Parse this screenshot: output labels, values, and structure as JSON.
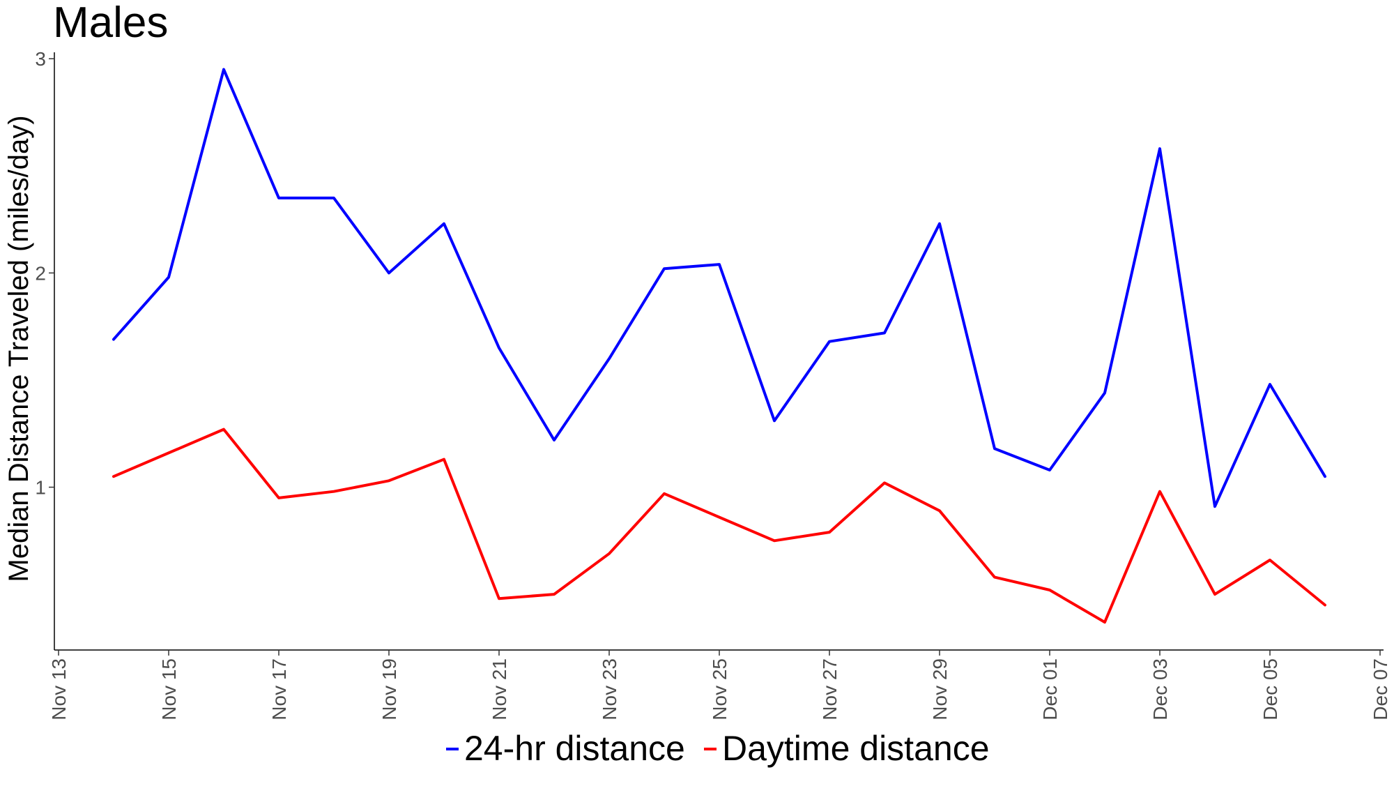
{
  "chart_data": {
    "type": "line",
    "title": "Males",
    "xlabel": "",
    "ylabel": "Median Distance Traveled (miles/day)",
    "x": [
      "Nov 14",
      "Nov 15",
      "Nov 16",
      "Nov 17",
      "Nov 18",
      "Nov 19",
      "Nov 20",
      "Nov 21",
      "Nov 22",
      "Nov 23",
      "Nov 24",
      "Nov 25",
      "Nov 26",
      "Nov 27",
      "Nov 28",
      "Nov 29",
      "Nov 30",
      "Dec 01",
      "Dec 02",
      "Dec 03",
      "Dec 04",
      "Dec 05",
      "Dec 06"
    ],
    "x_tick_labels": [
      "Nov 13",
      "Nov 15",
      "Nov 17",
      "Nov 19",
      "Nov 21",
      "Nov 23",
      "Nov 25",
      "Nov 27",
      "Nov 29",
      "Dec 01",
      "Dec 03",
      "Dec 05",
      "Dec 07"
    ],
    "y_ticks": [
      1,
      2,
      3
    ],
    "ylim": [
      0.24,
      3.03
    ],
    "grid": false,
    "legend_position": "bottom",
    "series": [
      {
        "name": "24-hr distance",
        "color": "#0000ff",
        "values": [
          1.69,
          1.98,
          2.95,
          2.35,
          2.35,
          2.0,
          2.23,
          1.65,
          1.22,
          1.6,
          2.02,
          2.04,
          1.31,
          1.68,
          1.72,
          2.23,
          1.18,
          1.08,
          1.44,
          2.58,
          0.91,
          1.48,
          1.05
        ]
      },
      {
        "name": "Daytime distance",
        "color": "#ff0000",
        "values": [
          1.05,
          1.16,
          1.27,
          0.95,
          0.98,
          1.03,
          1.13,
          0.48,
          0.5,
          0.69,
          0.97,
          0.86,
          0.75,
          0.79,
          1.02,
          0.89,
          0.58,
          0.52,
          0.37,
          0.98,
          0.5,
          0.66,
          0.45
        ]
      }
    ]
  }
}
